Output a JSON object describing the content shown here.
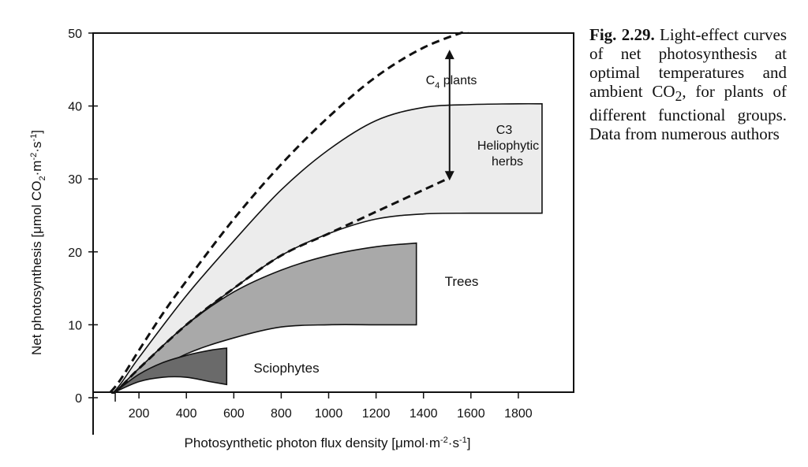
{
  "chart_data": {
    "type": "area",
    "xlabel_main": "Photosynthetic photon flux density [",
    "xlabel_unit": "μmol·m",
    "xlabel_sup1": "-2",
    "xlabel_mid": "·s",
    "xlabel_sup2": "-1",
    "xlabel_end": "]",
    "ylabel_main": "Net photosynthesis [μmol CO",
    "ylabel_sub": "2",
    "ylabel_unit": "·m",
    "ylabel_sup1": "-2",
    "ylabel_mid": "·s",
    "ylabel_sup2": "-1",
    "ylabel_end": "]",
    "xlim": [
      0,
      2100
    ],
    "ylim": [
      -5,
      50
    ],
    "x_ticks": [
      200,
      400,
      600,
      800,
      1000,
      1200,
      1400,
      1600,
      1800
    ],
    "y_ticks": [
      0,
      10,
      20,
      30,
      40,
      50
    ],
    "grid": false,
    "series": [
      {
        "name": "C4 plants",
        "style": "dashed",
        "x": [
          0,
          100,
          200,
          300,
          400,
          600,
          800,
          1000,
          1200,
          1400,
          1600
        ],
        "y": [
          -1.5,
          1.5,
          6.5,
          11.5,
          16,
          24.5,
          32,
          38.5,
          44,
          48,
          50.5
        ]
      },
      {
        "name": "C3 Heliophytic herbs",
        "style": "band",
        "fill": "#ececec",
        "upper_x": [
          0,
          100,
          200,
          400,
          600,
          800,
          1000,
          1200,
          1400,
          1600,
          1800,
          1900
        ],
        "upper_y": [
          -1.5,
          1,
          5.5,
          14,
          21.5,
          28.5,
          34,
          38,
          39.8,
          40.2,
          40.3,
          40.3
        ],
        "lower_x": [
          0,
          100,
          200,
          400,
          600,
          800,
          1000,
          1200,
          1400,
          1600,
          1800,
          1900
        ],
        "lower_y": [
          -1.5,
          0.8,
          4,
          10,
          15,
          19.5,
          22.5,
          24.5,
          25.2,
          25.3,
          25.3,
          25.3
        ]
      },
      {
        "name": "C3 Heliophytic herbs (dashed)",
        "style": "dashed",
        "x": [
          0,
          100,
          200,
          400,
          600,
          800,
          1000,
          1200,
          1400,
          1500
        ],
        "y": [
          -1.5,
          0.8,
          4,
          10,
          15,
          19.5,
          22.5,
          25.5,
          28.5,
          30
        ]
      },
      {
        "name": "Trees",
        "style": "band",
        "fill": "#a9a9a9",
        "upper_x": [
          100,
          200,
          400,
          600,
          800,
          1000,
          1200,
          1370
        ],
        "upper_y": [
          0.8,
          4,
          10,
          14.5,
          17.5,
          19.5,
          20.7,
          21.2
        ],
        "lower_x": [
          100,
          200,
          400,
          600,
          800,
          1000,
          1200,
          1370
        ],
        "lower_y": [
          0.8,
          2.5,
          6,
          8.2,
          9.7,
          10,
          10,
          10
        ]
      },
      {
        "name": "Sciophytes",
        "style": "band",
        "fill": "#6a6a6a",
        "upper_x": [
          100,
          200,
          300,
          400,
          500,
          570
        ],
        "upper_y": [
          0.8,
          3.2,
          4.8,
          5.8,
          6.5,
          6.8
        ],
        "lower_x": [
          100,
          200,
          300,
          400,
          500,
          570
        ],
        "lower_y": [
          0.8,
          2.2,
          2.8,
          2.8,
          2.2,
          1.8
        ]
      }
    ],
    "annotations": {
      "c4_label_main": "C",
      "c4_label_sub": "4",
      "c4_label_rest": " plants",
      "c3_line1": "C3",
      "c3_line2": "Heliophytic",
      "c3_line3": "herbs",
      "trees": "Trees",
      "sciophytes": "Sciophytes"
    },
    "arrow": {
      "x": 1510,
      "y_from": 30,
      "y_to": 47.5
    }
  },
  "caption": {
    "fig_label": "Fig. 2.29.",
    "text_1": " Light-effect curves of net photosynthesis at optimal temperatures and ambient CO",
    "text_sub": "2",
    "text_2": ", for plants of different functional groups. Data from numerous authors"
  }
}
